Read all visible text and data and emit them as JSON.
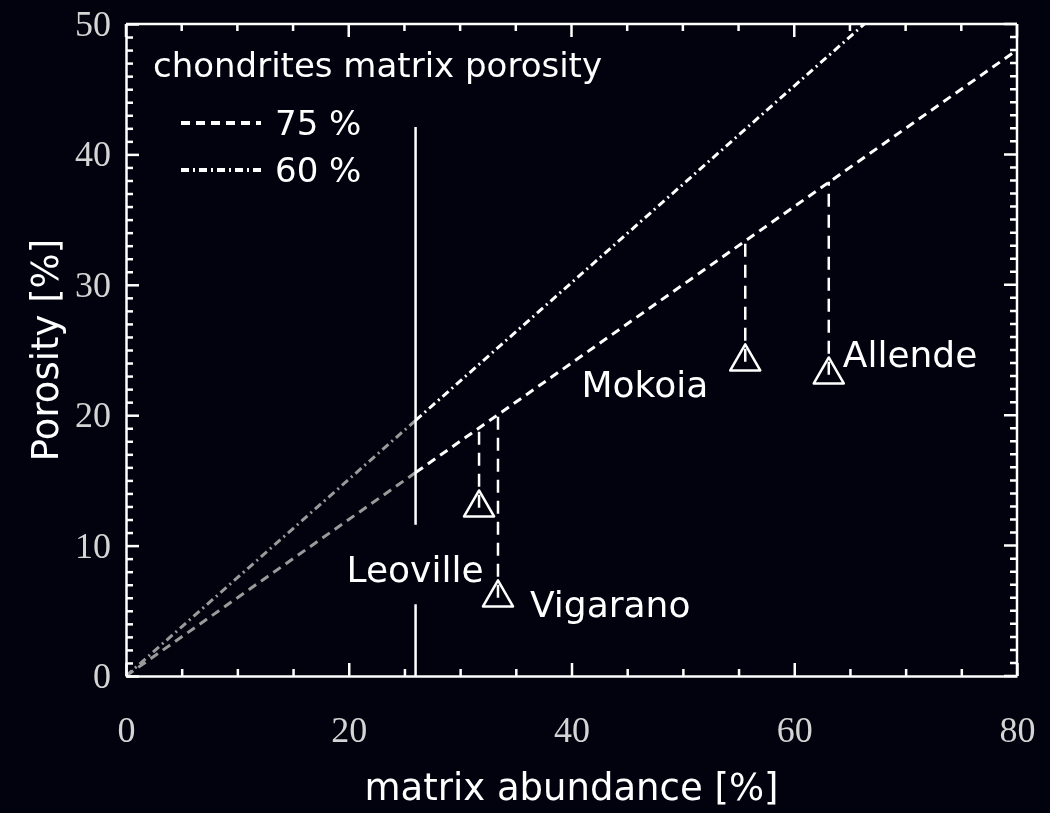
{
  "chart_data": {
    "type": "scatter",
    "xlabel": "matrix abundance [%]",
    "ylabel": "Porosity [%]",
    "xlim": [
      0,
      80
    ],
    "ylim": [
      0,
      50
    ],
    "xticks": [
      0,
      {
        "value": 5,
        "label": null
      },
      {
        "value": 10,
        "label": null
      },
      {
        "value": 15,
        "label": null
      },
      20,
      {
        "value": 25,
        "label": null
      },
      {
        "value": 30,
        "label": null
      },
      {
        "value": 35,
        "label": null
      },
      40,
      {
        "value": 45,
        "label": null
      },
      {
        "value": 50,
        "label": null
      },
      {
        "value": 55,
        "label": null
      },
      60,
      {
        "value": 65,
        "label": null
      },
      {
        "value": 70,
        "label": null
      },
      {
        "value": 75,
        "label": null
      },
      80
    ],
    "yticks": [
      0,
      {
        "value": 1,
        "label": null
      },
      {
        "value": 2,
        "label": null
      },
      {
        "value": 3,
        "label": null
      },
      {
        "value": 4,
        "label": null
      },
      {
        "value": 5,
        "label": null
      },
      {
        "value": 6,
        "label": null
      },
      {
        "value": 7,
        "label": null
      },
      {
        "value": 8,
        "label": null
      },
      {
        "value": 9,
        "label": null
      },
      10,
      {
        "value": 11,
        "label": null
      },
      {
        "value": 12,
        "label": null
      },
      {
        "value": 13,
        "label": null
      },
      {
        "value": 14,
        "label": null
      },
      {
        "value": 15,
        "label": null
      },
      {
        "value": 16,
        "label": null
      },
      {
        "value": 17,
        "label": null
      },
      {
        "value": 18,
        "label": null
      },
      {
        "value": 19,
        "label": null
      },
      20,
      {
        "value": 21,
        "label": null
      },
      {
        "value": 22,
        "label": null
      },
      {
        "value": 23,
        "label": null
      },
      {
        "value": 24,
        "label": null
      },
      {
        "value": 25,
        "label": null
      },
      {
        "value": 26,
        "label": null
      },
      {
        "value": 27,
        "label": null
      },
      {
        "value": 28,
        "label": null
      },
      {
        "value": 29,
        "label": null
      },
      30,
      {
        "value": 31,
        "label": null
      },
      {
        "value": 32,
        "label": null
      },
      {
        "value": 33,
        "label": null
      },
      {
        "value": 34,
        "label": null
      },
      {
        "value": 35,
        "label": null
      },
      {
        "value": 36,
        "label": null
      },
      {
        "value": 37,
        "label": null
      },
      {
        "value": 38,
        "label": null
      },
      {
        "value": 39,
        "label": null
      },
      40,
      {
        "value": 41,
        "label": null
      },
      {
        "value": 42,
        "label": null
      },
      {
        "value": 43,
        "label": null
      },
      {
        "value": 44,
        "label": null
      },
      {
        "value": 45,
        "label": null
      },
      {
        "value": 46,
        "label": null
      },
      {
        "value": 47,
        "label": null
      },
      {
        "value": 48,
        "label": null
      },
      {
        "value": 49,
        "label": null
      },
      50
    ],
    "legend": "top left",
    "legend_title": "chondrites matrix porosity",
    "series": [
      {
        "name": "75 %",
        "type": "line",
        "color": "#ffffff",
        "line_style": "dashed",
        "x": [
          26,
          80
        ],
        "values": [
          15.6,
          48
        ]
      },
      {
        "type": "line",
        "color": "#9a9a9a",
        "line_style": "dashed",
        "x": [
          0,
          26
        ],
        "values": [
          0,
          15.6
        ]
      },
      {
        "name": "60 %",
        "type": "line",
        "color": "#ffffff",
        "line_style": "dashdot",
        "x": [
          26,
          66.3
        ],
        "values": [
          19.6,
          50
        ]
      },
      {
        "type": "line",
        "color": "#9a9a9a",
        "line_style": "dashdot",
        "x": [
          0,
          26
        ],
        "values": [
          0,
          19.6
        ]
      },
      {
        "type": "line",
        "color": "#ffffff",
        "line_style": "solid",
        "x": [
          26,
          26
        ],
        "values": [
          0,
          5.5
        ]
      },
      {
        "type": "line",
        "color": "#ffffff",
        "line_style": "solid",
        "x": [
          26,
          26
        ],
        "values": [
          11.6,
          42.1
        ]
      },
      {
        "type": "line",
        "color": "#ffffff",
        "line_style": "dashed",
        "x": [
          31.7,
          31.7
        ],
        "values": [
          12.9,
          19
        ]
      },
      {
        "type": "line",
        "color": "#ffffff",
        "line_style": "dashed",
        "x": [
          33.4,
          33.4
        ],
        "values": [
          6,
          20
        ]
      },
      {
        "type": "line",
        "color": "#ffffff",
        "line_style": "dashed",
        "x": [
          55.6,
          55.6
        ],
        "values": [
          24.1,
          33.4
        ]
      },
      {
        "type": "line",
        "color": "#ffffff",
        "line_style": "dashed",
        "x": [
          63.1,
          63.1
        ],
        "values": [
          23.1,
          37.9
        ]
      },
      {
        "color": "#ffffff",
        "marker": "triangle",
        "x": [
          31.7,
          33.4,
          55.6,
          63.1
        ],
        "values": [
          12.9,
          6,
          24.1,
          23.1
        ]
      }
    ],
    "annotations": [
      {
        "text": "Leoville",
        "x": 31.7,
        "y": 12.9
      },
      {
        "text": "Vigarano",
        "x": 33.4,
        "y": 6
      },
      {
        "text": "Mokoia",
        "x": 55.6,
        "y": 24.1
      },
      {
        "text": "Allende",
        "x": 63.1,
        "y": 23.1
      }
    ]
  }
}
